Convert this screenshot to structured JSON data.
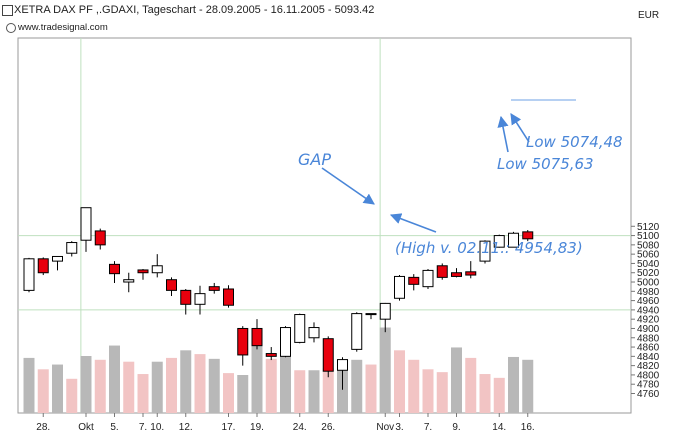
{
  "header": {
    "title": "XETRA DAX PF ,.GDAXI, Tageschart - 28.09.2005 - 16.11.2005 - 5093.42",
    "source": "www.tradesignal.com",
    "unit": "EUR"
  },
  "chart_data": {
    "type": "candlestick",
    "title": "XETRA DAX PF ,.GDAXI, Tageschart - 28.09.2005 - 16.11.2005 - 5093.42",
    "ylim": [
      4740,
      5140
    ],
    "y_ticks": [
      4760,
      4780,
      4800,
      4820,
      4840,
      4860,
      4880,
      4900,
      4920,
      4940,
      4960,
      4980,
      5000,
      5020,
      5040,
      5060,
      5080,
      5100,
      5120
    ],
    "x_tick_labels": [
      "28.",
      "Okt",
      "5.",
      "7.",
      "10.",
      "12.",
      "17.",
      "19.",
      "24.",
      "26.",
      "Nov",
      "3.",
      "7.",
      "9.",
      "14.",
      "16."
    ],
    "x_tick_index": [
      1,
      4,
      6,
      8,
      9,
      11,
      14,
      16,
      19,
      21,
      25,
      26,
      28,
      30,
      33,
      35
    ],
    "grid": {
      "horizontal_at": [
        4940,
        5100
      ],
      "vertical_at_index": [
        4,
        25
      ]
    },
    "candles": [
      {
        "o": 4982,
        "h": 5052,
        "l": 4978,
        "c": 5050
      },
      {
        "o": 5050,
        "h": 5053,
        "l": 5015,
        "c": 5020
      },
      {
        "o": 5045,
        "h": 5055,
        "l": 5025,
        "c": 5055
      },
      {
        "o": 5062,
        "h": 5088,
        "l": 5055,
        "c": 5085
      },
      {
        "o": 5090,
        "h": 5160,
        "l": 5065,
        "c": 5160
      },
      {
        "o": 5110,
        "h": 5115,
        "l": 5070,
        "c": 5080
      },
      {
        "o": 5038,
        "h": 5045,
        "l": 4998,
        "c": 5018
      },
      {
        "o": 5000,
        "h": 5020,
        "l": 4978,
        "c": 5005
      },
      {
        "o": 5026,
        "h": 5028,
        "l": 5005,
        "c": 5020
      },
      {
        "o": 5020,
        "h": 5060,
        "l": 5010,
        "c": 5035
      },
      {
        "o": 5005,
        "h": 5010,
        "l": 4970,
        "c": 4982
      },
      {
        "o": 4982,
        "h": 4985,
        "l": 4930,
        "c": 4952
      },
      {
        "o": 4952,
        "h": 4992,
        "l": 4930,
        "c": 4975
      },
      {
        "o": 4990,
        "h": 4998,
        "l": 4975,
        "c": 4982
      },
      {
        "o": 4985,
        "h": 4993,
        "l": 4945,
        "c": 4950
      },
      {
        "o": 4900,
        "h": 4905,
        "l": 4820,
        "c": 4843
      },
      {
        "o": 4900,
        "h": 4920,
        "l": 4855,
        "c": 4863
      },
      {
        "o": 4846,
        "h": 4860,
        "l": 4832,
        "c": 4840
      },
      {
        "o": 4840,
        "h": 4905,
        "l": 4838,
        "c": 4902
      },
      {
        "o": 4870,
        "h": 4932,
        "l": 4868,
        "c": 4930
      },
      {
        "o": 4880,
        "h": 4913,
        "l": 4870,
        "c": 4902
      },
      {
        "o": 4878,
        "h": 4883,
        "l": 4795,
        "c": 4808
      },
      {
        "o": 4810,
        "h": 4838,
        "l": 4768,
        "c": 4833
      },
      {
        "o": 4855,
        "h": 4935,
        "l": 4850,
        "c": 4932
      },
      {
        "o": 4930,
        "h": 4932,
        "l": 4920,
        "c": 4932
      },
      {
        "o": 4920,
        "h": 4955,
        "l": 4892,
        "c": 4954
      },
      {
        "o": 4965,
        "h": 5015,
        "l": 4960,
        "c": 5012
      },
      {
        "o": 5010,
        "h": 5017,
        "l": 4982,
        "c": 4995
      },
      {
        "o": 4990,
        "h": 5028,
        "l": 4985,
        "c": 5025
      },
      {
        "o": 5035,
        "h": 5040,
        "l": 5005,
        "c": 5010
      },
      {
        "o": 5020,
        "h": 5030,
        "l": 5010,
        "c": 5012
      },
      {
        "o": 5022,
        "h": 5045,
        "l": 5008,
        "c": 5015
      },
      {
        "o": 5045,
        "h": 5090,
        "l": 5040,
        "c": 5088
      },
      {
        "o": 5075,
        "h": 5102,
        "l": 5074,
        "c": 5100
      },
      {
        "o": 5075,
        "h": 5108,
        "l": 5075,
        "c": 5105
      },
      {
        "o": 5108,
        "h": 5112,
        "l": 5088,
        "c": 5093
      }
    ],
    "volume": [
      {
        "v": 0.58,
        "up": false
      },
      {
        "v": 0.46,
        "up": true
      },
      {
        "v": 0.51,
        "up": false
      },
      {
        "v": 0.36,
        "up": true
      },
      {
        "v": 0.6,
        "up": false
      },
      {
        "v": 0.56,
        "up": true
      },
      {
        "v": 0.71,
        "up": false
      },
      {
        "v": 0.54,
        "up": true
      },
      {
        "v": 0.41,
        "up": true
      },
      {
        "v": 0.54,
        "up": false
      },
      {
        "v": 0.58,
        "up": true
      },
      {
        "v": 0.66,
        "up": false
      },
      {
        "v": 0.62,
        "up": true
      },
      {
        "v": 0.57,
        "up": false
      },
      {
        "v": 0.42,
        "up": true
      },
      {
        "v": 0.4,
        "up": false
      },
      {
        "v": 0.87,
        "up": false
      },
      {
        "v": 0.57,
        "up": true
      },
      {
        "v": 0.62,
        "up": false
      },
      {
        "v": 0.45,
        "up": true
      },
      {
        "v": 0.45,
        "up": false
      },
      {
        "v": 0.47,
        "up": true
      },
      {
        "v": 0.52,
        "up": false
      },
      {
        "v": 0.56,
        "up": false
      },
      {
        "v": 0.51,
        "up": true
      },
      {
        "v": 0.9,
        "up": false
      },
      {
        "v": 0.66,
        "up": true
      },
      {
        "v": 0.56,
        "up": true
      },
      {
        "v": 0.46,
        "up": true
      },
      {
        "v": 0.43,
        "up": true
      },
      {
        "v": 0.69,
        "up": false
      },
      {
        "v": 0.58,
        "up": true
      },
      {
        "v": 0.41,
        "up": true
      },
      {
        "v": 0.37,
        "up": true
      },
      {
        "v": 0.59,
        "up": false
      },
      {
        "v": 0.56,
        "up": false
      }
    ],
    "annotations": [
      {
        "text": "GAP",
        "color": "#4a86d8"
      },
      {
        "text": "(High v. 02.11.: 4954,83)",
        "color": "#4a86d8"
      },
      {
        "text": "Low 5074,48",
        "color": "#4a86d8"
      },
      {
        "text": "Low 5075,63",
        "color": "#4a86d8"
      }
    ],
    "colors": {
      "up_body": "#ffffff",
      "down_body": "#e8000d",
      "candle_outline": "#000000",
      "volume_down": "#b8b8b8",
      "volume_up": "#f2c4c4",
      "grid": "#bfe0bf",
      "annotation": "#4a86d8"
    }
  }
}
